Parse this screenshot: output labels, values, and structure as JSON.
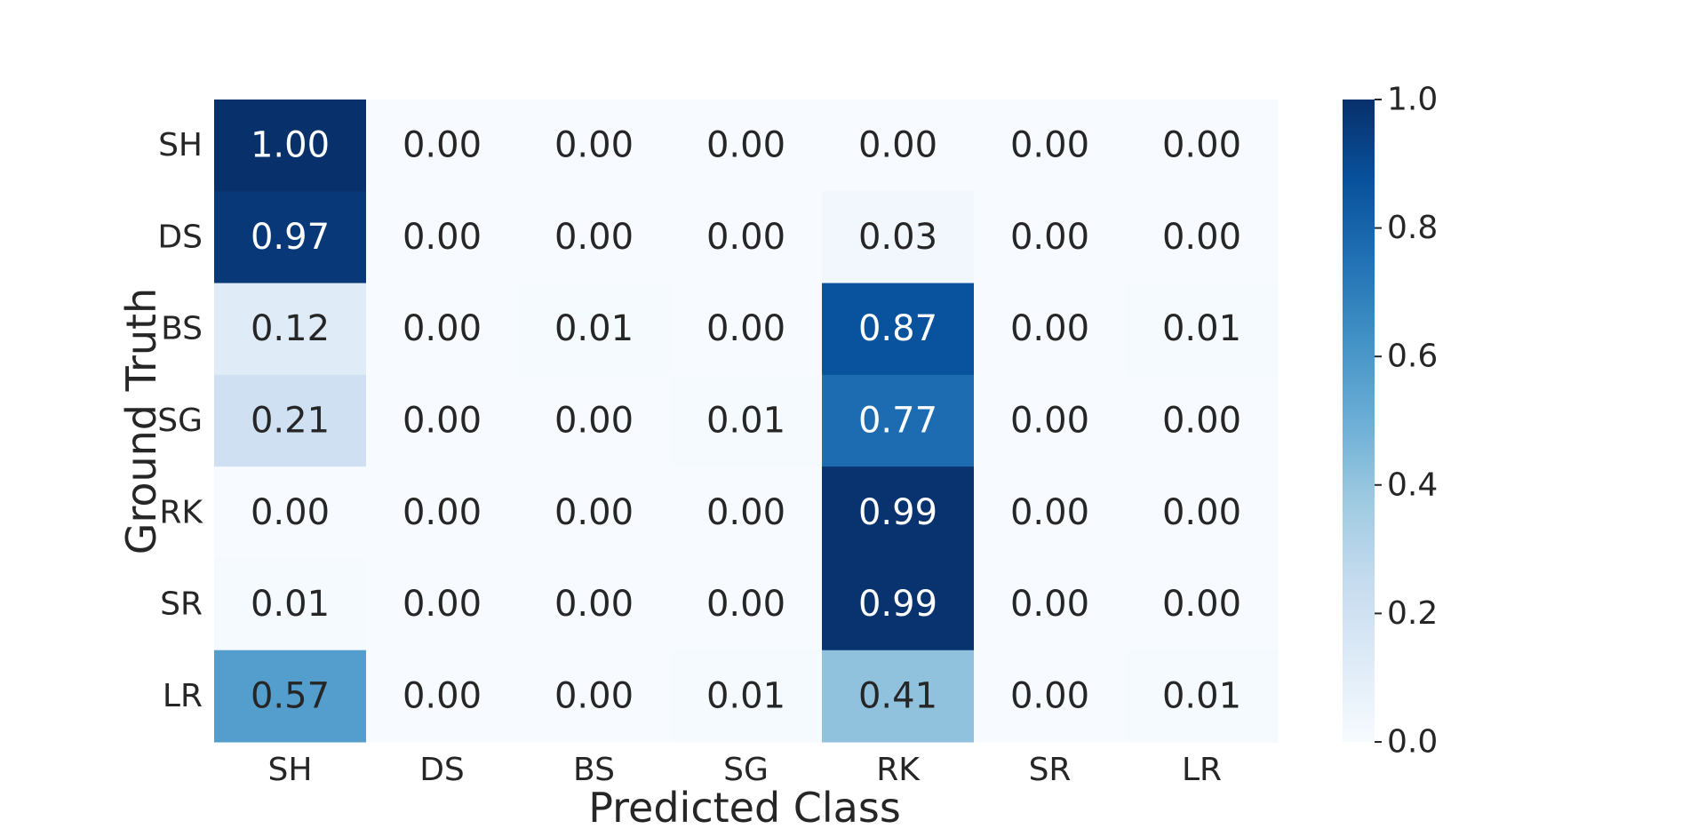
{
  "chart_data": {
    "type": "heatmap",
    "colormap": "Blues",
    "xlabel": "Predicted Class",
    "ylabel": "Ground Truth",
    "x_categories": [
      "SH",
      "DS",
      "BS",
      "SG",
      "RK",
      "SR",
      "LR"
    ],
    "y_categories": [
      "SH",
      "DS",
      "BS",
      "SG",
      "RK",
      "SR",
      "LR"
    ],
    "values": [
      [
        1.0,
        0.0,
        0.0,
        0.0,
        0.0,
        0.0,
        0.0
      ],
      [
        0.97,
        0.0,
        0.0,
        0.0,
        0.03,
        0.0,
        0.0
      ],
      [
        0.12,
        0.0,
        0.01,
        0.0,
        0.87,
        0.0,
        0.01
      ],
      [
        0.21,
        0.0,
        0.0,
        0.01,
        0.77,
        0.0,
        0.0
      ],
      [
        0.0,
        0.0,
        0.0,
        0.0,
        0.99,
        0.0,
        0.0
      ],
      [
        0.01,
        0.0,
        0.0,
        0.0,
        0.99,
        0.0,
        0.0
      ],
      [
        0.57,
        0.0,
        0.0,
        0.01,
        0.41,
        0.0,
        0.01
      ]
    ],
    "value_format": "0.00",
    "colorbar": {
      "range": [
        0.0,
        1.0
      ],
      "ticks": [
        "0.0",
        "0.2",
        "0.4",
        "0.6",
        "0.8",
        "1.0"
      ]
    }
  }
}
